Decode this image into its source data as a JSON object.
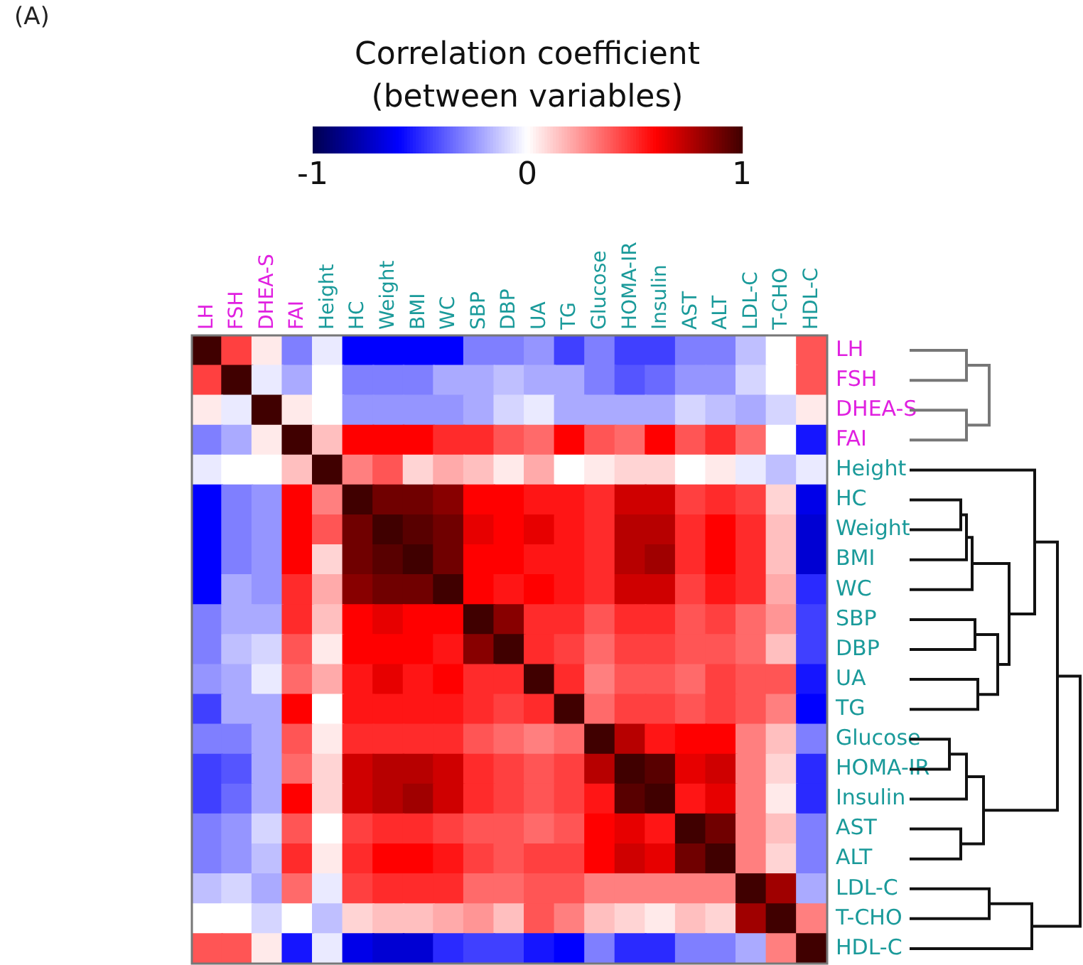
{
  "chart_data": {
    "type": "heatmap",
    "clabel": "Correlation coefficient\n(between variables)",
    "clim": [
      -1,
      1
    ],
    "cticks": [
      -1,
      0,
      1
    ],
    "annotations": [
      "(A)"
    ],
    "categories": [
      "LH",
      "FSH",
      "DHEA-S",
      "FAI",
      "Height",
      "HC",
      "Weight",
      "BMI",
      "WC",
      "SBP",
      "DBP",
      "UA",
      "TG",
      "Glucose",
      "HOMA-IR",
      "Insulin",
      "AST",
      "ALT",
      "LDL-C",
      "T-CHO",
      "HDL-C"
    ],
    "y_categories": [
      "LH",
      "FSH",
      "DHEA-S",
      "FAI",
      "Height",
      "HC",
      "Weight",
      "BMI",
      "WC",
      "SBP",
      "DBP",
      "UA",
      "TG",
      "Glucose",
      "HOMA-IR",
      "Insulin",
      "AST",
      "ALT",
      "LDL-C",
      "T-CHO",
      "HDL-C"
    ],
    "cells": [
      [
        1,
        0.45,
        0.05,
        -0.3,
        -0.05,
        -0.6,
        -0.6,
        -0.6,
        -0.6,
        -0.3,
        -0.3,
        -0.25,
        -0.45,
        -0.3,
        -0.45,
        -0.45,
        -0.3,
        -0.3,
        -0.15,
        0,
        0.4
      ],
      [
        0.45,
        1,
        -0.05,
        -0.2,
        0,
        -0.3,
        -0.3,
        -0.3,
        -0.2,
        -0.2,
        -0.15,
        -0.2,
        -0.2,
        -0.3,
        -0.4,
        -0.35,
        -0.25,
        -0.25,
        -0.1,
        0,
        0.4
      ],
      [
        0.05,
        -0.05,
        1,
        0.05,
        0,
        -0.25,
        -0.25,
        -0.25,
        -0.25,
        -0.2,
        -0.1,
        -0.05,
        -0.2,
        -0.2,
        -0.2,
        -0.2,
        -0.1,
        -0.15,
        -0.2,
        -0.1,
        0.05
      ],
      [
        -0.3,
        -0.2,
        0.05,
        1,
        0.15,
        0.6,
        0.6,
        0.6,
        0.5,
        0.5,
        0.4,
        0.35,
        0.6,
        0.4,
        0.35,
        0.6,
        0.4,
        0.5,
        0.35,
        0,
        -0.55
      ],
      [
        -0.05,
        0,
        0,
        0.15,
        1,
        0.3,
        0.4,
        0.1,
        0.2,
        0.15,
        0.05,
        0.2,
        0,
        0.05,
        0.1,
        0.1,
        0,
        0.05,
        -0.05,
        -0.15,
        -0.05
      ],
      [
        -0.6,
        -0.3,
        -0.25,
        0.6,
        0.3,
        1,
        0.9,
        0.9,
        0.85,
        0.6,
        0.6,
        0.55,
        0.55,
        0.5,
        0.7,
        0.7,
        0.45,
        0.5,
        0.45,
        0.1,
        -0.65
      ],
      [
        -0.6,
        -0.3,
        -0.25,
        0.6,
        0.4,
        0.9,
        1,
        0.95,
        0.9,
        0.65,
        0.6,
        0.65,
        0.55,
        0.5,
        0.75,
        0.75,
        0.5,
        0.6,
        0.5,
        0.15,
        -0.7
      ],
      [
        -0.6,
        -0.3,
        -0.25,
        0.6,
        0.1,
        0.9,
        0.95,
        1,
        0.9,
        0.6,
        0.6,
        0.55,
        0.55,
        0.5,
        0.75,
        0.8,
        0.5,
        0.6,
        0.5,
        0.15,
        -0.7
      ],
      [
        -0.6,
        -0.2,
        -0.25,
        0.5,
        0.2,
        0.85,
        0.9,
        0.9,
        1,
        0.6,
        0.55,
        0.6,
        0.55,
        0.5,
        0.7,
        0.7,
        0.45,
        0.55,
        0.5,
        0.2,
        -0.5
      ],
      [
        -0.3,
        -0.2,
        -0.2,
        0.5,
        0.15,
        0.6,
        0.65,
        0.6,
        0.6,
        1,
        0.85,
        0.5,
        0.5,
        0.4,
        0.5,
        0.5,
        0.4,
        0.45,
        0.35,
        0.25,
        -0.45
      ],
      [
        -0.3,
        -0.15,
        -0.1,
        0.4,
        0.05,
        0.6,
        0.6,
        0.6,
        0.55,
        0.85,
        1,
        0.5,
        0.45,
        0.35,
        0.45,
        0.45,
        0.4,
        0.4,
        0.35,
        0.15,
        -0.45
      ],
      [
        -0.25,
        -0.2,
        -0.05,
        0.35,
        0.2,
        0.55,
        0.65,
        0.55,
        0.6,
        0.5,
        0.5,
        1,
        0.5,
        0.3,
        0.4,
        0.4,
        0.35,
        0.45,
        0.4,
        0.4,
        -0.55
      ],
      [
        -0.45,
        -0.2,
        -0.2,
        0.6,
        0,
        0.55,
        0.55,
        0.55,
        0.55,
        0.5,
        0.45,
        0.5,
        1,
        0.35,
        0.45,
        0.45,
        0.4,
        0.45,
        0.4,
        0.3,
        -0.6
      ],
      [
        -0.3,
        -0.3,
        -0.2,
        0.4,
        0.05,
        0.5,
        0.5,
        0.5,
        0.5,
        0.4,
        0.35,
        0.3,
        0.35,
        1,
        0.75,
        0.55,
        0.6,
        0.6,
        0.3,
        0.15,
        -0.3
      ],
      [
        -0.45,
        -0.4,
        -0.2,
        0.35,
        0.1,
        0.7,
        0.75,
        0.75,
        0.7,
        0.5,
        0.45,
        0.4,
        0.45,
        0.75,
        1,
        0.95,
        0.65,
        0.7,
        0.3,
        0.1,
        -0.5
      ],
      [
        -0.45,
        -0.35,
        -0.2,
        0.6,
        0.1,
        0.7,
        0.75,
        0.8,
        0.7,
        0.5,
        0.45,
        0.4,
        0.45,
        0.55,
        0.95,
        1,
        0.55,
        0.65,
        0.3,
        0.05,
        -0.5
      ],
      [
        -0.3,
        -0.25,
        -0.1,
        0.4,
        0,
        0.45,
        0.5,
        0.5,
        0.45,
        0.4,
        0.4,
        0.35,
        0.4,
        0.6,
        0.65,
        0.55,
        1,
        0.9,
        0.3,
        0.15,
        -0.3
      ],
      [
        -0.3,
        -0.25,
        -0.15,
        0.5,
        0.05,
        0.5,
        0.6,
        0.6,
        0.55,
        0.45,
        0.4,
        0.45,
        0.45,
        0.6,
        0.7,
        0.65,
        0.9,
        1,
        0.3,
        0.1,
        -0.3
      ],
      [
        -0.15,
        -0.1,
        -0.2,
        0.35,
        -0.05,
        0.45,
        0.5,
        0.5,
        0.5,
        0.35,
        0.35,
        0.4,
        0.4,
        0.3,
        0.3,
        0.3,
        0.3,
        0.3,
        1,
        0.8,
        -0.2
      ],
      [
        0,
        0,
        -0.1,
        0,
        -0.15,
        0.1,
        0.15,
        0.15,
        0.2,
        0.25,
        0.15,
        0.4,
        0.3,
        0.15,
        0.1,
        0.05,
        0.15,
        0.1,
        0.8,
        1,
        0.3
      ],
      [
        0.4,
        0.4,
        0.05,
        -0.55,
        -0.05,
        -0.65,
        -0.7,
        -0.7,
        -0.5,
        -0.45,
        -0.45,
        -0.55,
        -0.6,
        -0.3,
        -0.5,
        -0.5,
        -0.3,
        -0.3,
        -0.2,
        0.3,
        1
      ]
    ]
  }
}
